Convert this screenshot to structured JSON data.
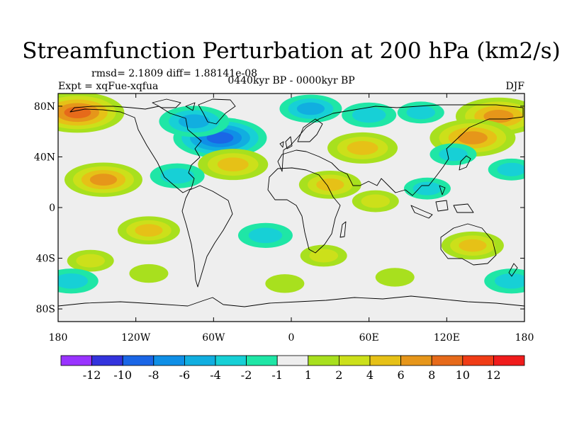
{
  "chart_data": {
    "type": "heatmap",
    "title": "Streamfunction Perturbation at 200 hPa (km2/s)",
    "subtitle": "0440kyr BP - 0000kyr BP",
    "stats": "rmsd= 2.1809 diff= 1.88141e-08",
    "experiment": "Expt = xqFue-xqfua",
    "season": "DJF",
    "x_ticks": [
      "180",
      "120W",
      "60W",
      "0",
      "60E",
      "120E",
      "180"
    ],
    "x_tick_values": [
      -180,
      -120,
      -60,
      0,
      60,
      120,
      180
    ],
    "y_ticks": [
      "80N",
      "40N",
      "0",
      "40S",
      "80S"
    ],
    "y_tick_values": [
      80,
      40,
      0,
      -40,
      -80
    ],
    "xlim": [
      -180,
      180
    ],
    "ylim": [
      -90,
      90
    ],
    "colorbar_labels": [
      "-12",
      "-10",
      "-8",
      "-6",
      "-4",
      "-2",
      "-1",
      "1",
      "2",
      "4",
      "6",
      "8",
      "10",
      "12"
    ],
    "colorbar_colors": [
      "#9933ff",
      "#3333dd",
      "#1a66e6",
      "#0f8fe6",
      "#11aee0",
      "#17d0d6",
      "#1fe6a6",
      "#eeeeee",
      "#a8e01e",
      "#cce01a",
      "#e6c117",
      "#e6961a",
      "#e66a1a",
      "#f03c16",
      "#f01c1c"
    ],
    "anomalies": [
      {
        "lon": -165,
        "lat": 75,
        "value": 8
      },
      {
        "lon": 160,
        "lat": 72,
        "value": 7
      },
      {
        "lon": -55,
        "lat": 55,
        "value": -8
      },
      {
        "lon": -75,
        "lat": 68,
        "value": -5
      },
      {
        "lon": 15,
        "lat": 78,
        "value": -4
      },
      {
        "lon": 60,
        "lat": 73,
        "value": -3
      },
      {
        "lon": 100,
        "lat": 75,
        "value": -2
      },
      {
        "lon": 55,
        "lat": 47,
        "value": 5
      },
      {
        "lon": 140,
        "lat": 55,
        "value": 7
      },
      {
        "lon": -45,
        "lat": 34,
        "value": 5
      },
      {
        "lon": -145,
        "lat": 22,
        "value": 6
      },
      {
        "lon": -88,
        "lat": 25,
        "value": -3
      },
      {
        "lon": 125,
        "lat": 42,
        "value": -2
      },
      {
        "lon": 170,
        "lat": 30,
        "value": -2
      },
      {
        "lon": 105,
        "lat": 15,
        "value": -2
      },
      {
        "lon": 30,
        "lat": 18,
        "value": 4
      },
      {
        "lon": 65,
        "lat": 5,
        "value": 2
      },
      {
        "lon": -110,
        "lat": -18,
        "value": 4
      },
      {
        "lon": -20,
        "lat": -22,
        "value": -3
      },
      {
        "lon": 140,
        "lat": -30,
        "value": 4
      },
      {
        "lon": -155,
        "lat": -42,
        "value": 2
      },
      {
        "lon": 25,
        "lat": -38,
        "value": 2
      },
      {
        "lon": -170,
        "lat": -58,
        "value": -3
      },
      {
        "lon": 170,
        "lat": -58,
        "value": -3
      },
      {
        "lon": 80,
        "lat": -55,
        "value": 1
      },
      {
        "lon": -110,
        "lat": -52,
        "value": 1
      },
      {
        "lon": -5,
        "lat": -60,
        "value": 1
      }
    ]
  }
}
